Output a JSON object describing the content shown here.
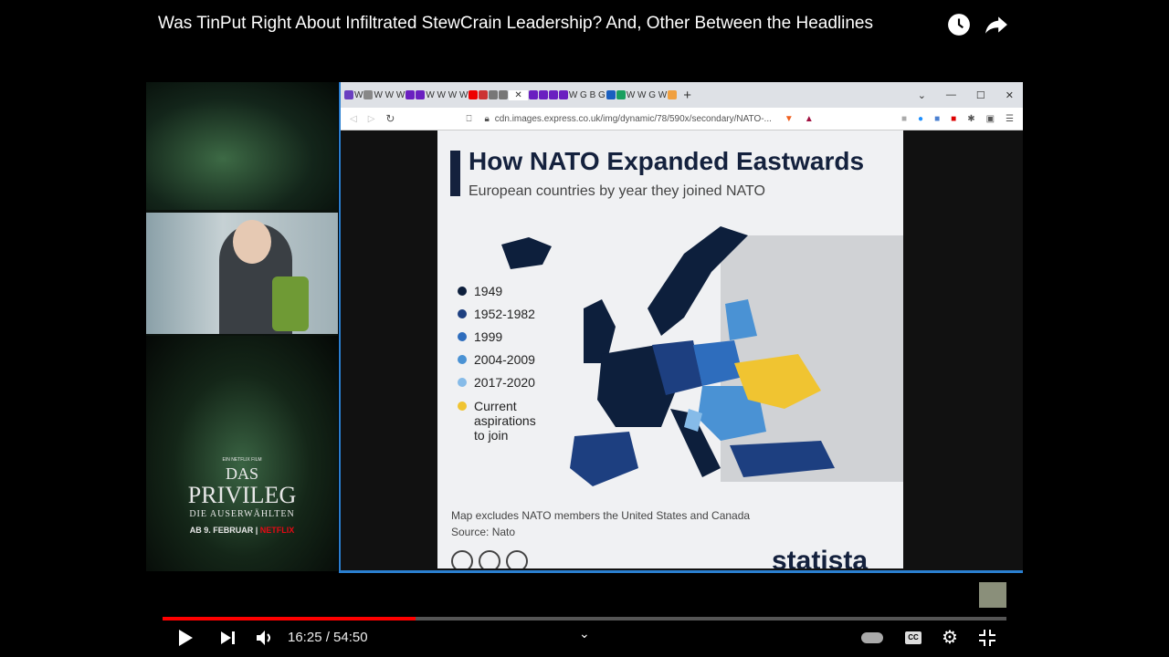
{
  "video": {
    "title": "Was TinPut Right About Infiltrated StewCrain Leadership? And, Other Between the Headlines",
    "current_time": "16:25",
    "duration": "54:50",
    "time_display": "16:25 / 54:50",
    "progress": 0.3
  },
  "poster": {
    "label": "EIN NETFLIX FILM",
    "title_1": "DAS",
    "title_2": "PRIVILEG",
    "subtitle": "DIE AUSERWÄHLTEN",
    "date": "AB 9. FEBRUAR",
    "brand": "NETFLIX"
  },
  "browser": {
    "url": "cdn.images.express.co.uk/img/dynamic/78/590x/secondary/NATO-...",
    "new_tab": "+"
  },
  "chart": {
    "title": "How NATO Expanded Eastwards",
    "subtitle": "European countries by year they joined NATO",
    "legend": [
      {
        "label": "1949",
        "color": "#0d1f3c"
      },
      {
        "label": "1952-1982",
        "color": "#1d3f80"
      },
      {
        "label": "1999",
        "color": "#2e6dbd"
      },
      {
        "label": "2004-2009",
        "color": "#4a92d4"
      },
      {
        "label": "2017-2020",
        "color": "#86bbe8"
      },
      {
        "label": "Current aspirations to join",
        "color": "#f0c431"
      }
    ],
    "note": "Map excludes NATO members the United States and Canada",
    "source": "Source: Nato",
    "brand": "statista"
  },
  "colors": {
    "progress": "#ff0000",
    "accent": "#2a7fd0"
  }
}
